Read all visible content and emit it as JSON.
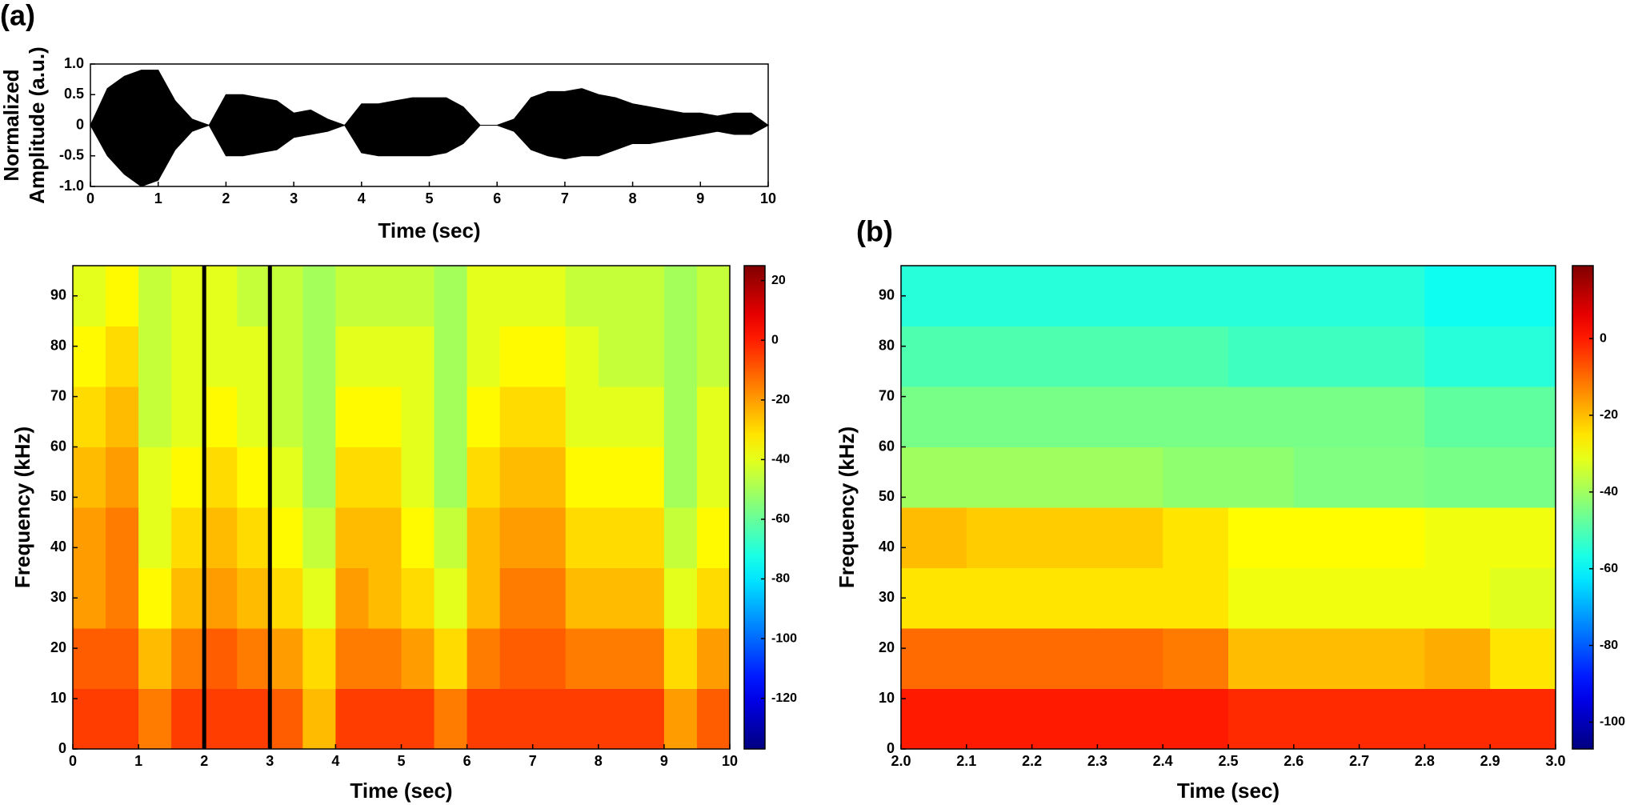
{
  "chart_data": [
    {
      "type": "area",
      "panel_label": "(a)",
      "xlabel": "Time (sec)",
      "ylabel": [
        "Normalized",
        "Amplitude (a.u.)"
      ],
      "x": [
        0,
        0.25,
        0.5,
        0.75,
        1,
        1.25,
        1.5,
        1.75,
        2,
        2.25,
        2.5,
        2.75,
        3,
        3.25,
        3.5,
        3.75,
        4,
        4.25,
        4.5,
        4.75,
        5,
        5.25,
        5.5,
        5.75,
        6,
        6.25,
        6.5,
        6.75,
        7,
        7.25,
        7.5,
        7.75,
        8,
        8.25,
        8.5,
        8.75,
        9,
        9.25,
        9.5,
        9.75,
        10
      ],
      "series": [
        {
          "color": "#000000",
          "values": [
            0,
            0.6,
            0.8,
            0.9,
            0.9,
            0.4,
            0.1,
            0,
            0.5,
            0.5,
            0.45,
            0.4,
            0.2,
            0.25,
            0.1,
            0,
            0.35,
            0.35,
            0.4,
            0.45,
            0.45,
            0.45,
            0.3,
            0,
            0,
            0.1,
            0.45,
            0.55,
            0.55,
            0.6,
            0.5,
            0.45,
            0.35,
            0.3,
            0.25,
            0.2,
            0.2,
            0.15,
            0.2,
            0.2,
            0
          ]
        },
        {
          "color": "#000000",
          "values": [
            0,
            -0.5,
            -0.8,
            -1.0,
            -0.9,
            -0.4,
            -0.1,
            0,
            -0.5,
            -0.5,
            -0.45,
            -0.4,
            -0.2,
            -0.15,
            -0.1,
            0,
            -0.45,
            -0.5,
            -0.5,
            -0.5,
            -0.5,
            -0.45,
            -0.3,
            0,
            0,
            -0.1,
            -0.4,
            -0.5,
            -0.55,
            -0.5,
            -0.5,
            -0.4,
            -0.3,
            -0.3,
            -0.25,
            -0.2,
            -0.15,
            -0.1,
            -0.15,
            -0.15,
            0
          ]
        }
      ],
      "xlim": [
        0,
        10
      ],
      "xticks": [
        0,
        1,
        2,
        3,
        4,
        5,
        6,
        7,
        8,
        9,
        10
      ],
      "ylim": [
        -1,
        1
      ],
      "yticks": [
        {
          "value": 1,
          "label": "1.0"
        },
        0.5,
        0,
        -0.5,
        {
          "value": -1,
          "label": "-1.0"
        }
      ]
    },
    {
      "type": "heatmap",
      "xlabel": "Time (sec)",
      "ylabel": "Frequency (kHz)",
      "colormap": "jet",
      "x_bins": [
        0,
        0.5,
        1,
        1.5,
        2,
        2.5,
        3,
        3.5,
        4,
        4.5,
        5,
        5.5,
        6,
        6.5,
        7,
        7.5,
        8,
        8.5,
        9,
        9.5,
        10
      ],
      "y_bins": [
        0,
        12,
        24,
        36,
        48,
        60,
        72,
        84,
        96
      ],
      "z": [
        [
          -5,
          -5,
          -15,
          -5,
          -5,
          -5,
          -10,
          -25,
          -5,
          -5,
          -5,
          -15,
          -5,
          -5,
          -5,
          -5,
          -5,
          -5,
          -20,
          -10
        ],
        [
          -10,
          -10,
          -25,
          -15,
          -10,
          -15,
          -20,
          -30,
          -15,
          -15,
          -20,
          -30,
          -15,
          -10,
          -10,
          -15,
          -15,
          -15,
          -30,
          -20
        ],
        [
          -20,
          -15,
          -35,
          -25,
          -20,
          -25,
          -30,
          -40,
          -20,
          -25,
          -30,
          -40,
          -25,
          -15,
          -15,
          -25,
          -25,
          -25,
          -40,
          -30
        ],
        [
          -20,
          -15,
          -40,
          -30,
          -25,
          -30,
          -35,
          -45,
          -25,
          -25,
          -35,
          -45,
          -25,
          -20,
          -20,
          -30,
          -30,
          -30,
          -45,
          -35
        ],
        [
          -25,
          -20,
          -40,
          -35,
          -30,
          -35,
          -40,
          -50,
          -30,
          -30,
          -40,
          -50,
          -30,
          -25,
          -25,
          -35,
          -35,
          -35,
          -50,
          -40
        ],
        [
          -30,
          -25,
          -45,
          -40,
          -35,
          -40,
          -45,
          -50,
          -35,
          -35,
          -40,
          -50,
          -35,
          -30,
          -30,
          -40,
          -40,
          -40,
          -50,
          -40
        ],
        [
          -35,
          -30,
          -45,
          -40,
          -40,
          -40,
          -45,
          -50,
          -40,
          -40,
          -40,
          -50,
          -40,
          -35,
          -35,
          -40,
          -45,
          -45,
          -50,
          -45
        ],
        [
          -40,
          -35,
          -45,
          -40,
          -40,
          -45,
          -45,
          -50,
          -45,
          -45,
          -45,
          -50,
          -40,
          -40,
          -40,
          -45,
          -45,
          -45,
          -50,
          -45
        ]
      ],
      "markers": [
        2,
        3
      ],
      "xlim": [
        0,
        10
      ],
      "xticks": [
        0,
        1,
        2,
        3,
        4,
        5,
        6,
        7,
        8,
        9,
        10
      ],
      "ylim": [
        0,
        96
      ],
      "yticks": [
        0,
        10,
        20,
        30,
        40,
        50,
        60,
        70,
        80,
        90
      ],
      "clim": [
        -137,
        25
      ],
      "cticks": [
        20,
        0,
        -20,
        -40,
        -60,
        -80,
        -100,
        -120
      ]
    },
    {
      "type": "heatmap",
      "panel_label": "(b)",
      "xlabel": "Time (sec)",
      "ylabel": "Frequency (kHz)",
      "colormap": "jet",
      "x_bins": [
        2.0,
        2.1,
        2.2,
        2.3,
        2.4,
        2.5,
        2.6,
        2.7,
        2.8,
        2.9,
        3.0
      ],
      "y_bins": [
        0,
        12,
        24,
        36,
        48,
        60,
        72,
        84,
        96
      ],
      "z": [
        [
          0,
          0,
          0,
          0,
          0,
          -2,
          -2,
          -2,
          -2,
          -2
        ],
        [
          -10,
          -10,
          -10,
          -10,
          -12,
          -20,
          -20,
          -20,
          -18,
          -25
        ],
        [
          -25,
          -25,
          -25,
          -25,
          -25,
          -30,
          -30,
          -30,
          -30,
          -32
        ],
        [
          -20,
          -22,
          -22,
          -22,
          -25,
          -28,
          -28,
          -28,
          -30,
          -30
        ],
        [
          -40,
          -40,
          -40,
          -40,
          -42,
          -42,
          -44,
          -44,
          -45,
          -45
        ],
        [
          -45,
          -45,
          -45,
          -45,
          -45,
          -45,
          -45,
          -45,
          -48,
          -48
        ],
        [
          -50,
          -50,
          -50,
          -50,
          -50,
          -52,
          -52,
          -52,
          -55,
          -55
        ],
        [
          -55,
          -55,
          -55,
          -55,
          -55,
          -55,
          -55,
          -55,
          -58,
          -58
        ]
      ],
      "xlim": [
        2,
        3
      ],
      "xticks": [
        {
          "value": 2,
          "label": "2.0"
        },
        2.1,
        2.2,
        2.3,
        2.4,
        2.5,
        2.6,
        2.7,
        2.8,
        2.9,
        {
          "value": 3,
          "label": "3.0"
        }
      ],
      "ylim": [
        0,
        96
      ],
      "yticks": [
        0,
        10,
        20,
        30,
        40,
        50,
        60,
        70,
        80,
        90
      ],
      "clim": [
        -107,
        19
      ],
      "cticks": [
        0,
        -20,
        -40,
        -60,
        -80,
        -100
      ]
    }
  ]
}
